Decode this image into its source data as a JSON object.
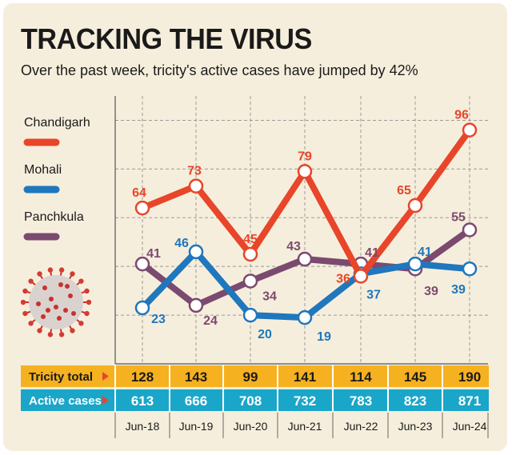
{
  "chart_data": {
    "type": "line",
    "title": "TRACKING THE VIRUS",
    "subtitle": "Over the past week, tricity's active cases have jumped by 42%",
    "categories": [
      "Jun-18",
      "Jun-19",
      "Jun-20",
      "Jun-21",
      "Jun-22",
      "Jun-23",
      "Jun-24"
    ],
    "series": [
      {
        "name": "Chandigarh",
        "color": "#e8452a",
        "values": [
          64,
          73,
          45,
          79,
          36,
          65,
          96
        ]
      },
      {
        "name": "Mohali",
        "color": "#1f77bd",
        "values": [
          23,
          46,
          20,
          19,
          37,
          41,
          39
        ]
      },
      {
        "name": "Panchkula",
        "color": "#7b4a6f",
        "values": [
          41,
          24,
          34,
          43,
          41,
          39,
          55
        ]
      }
    ],
    "ylim": [
      0,
      110
    ],
    "grid": "dashed",
    "legend": "left",
    "table": {
      "tricity_total": {
        "label": "Tricity total",
        "values": [
          "128",
          "143",
          "99",
          "141",
          "114",
          "145",
          "190"
        ]
      },
      "active_cases": {
        "label": "Active cases",
        "values": [
          "613",
          "666",
          "708",
          "732",
          "783",
          "823",
          "871"
        ]
      }
    },
    "colors": {
      "background": "#f6eedc",
      "tricity_row": "#f5b11f",
      "active_row": "#1aa6c9",
      "arrow": "#e8452a"
    }
  }
}
